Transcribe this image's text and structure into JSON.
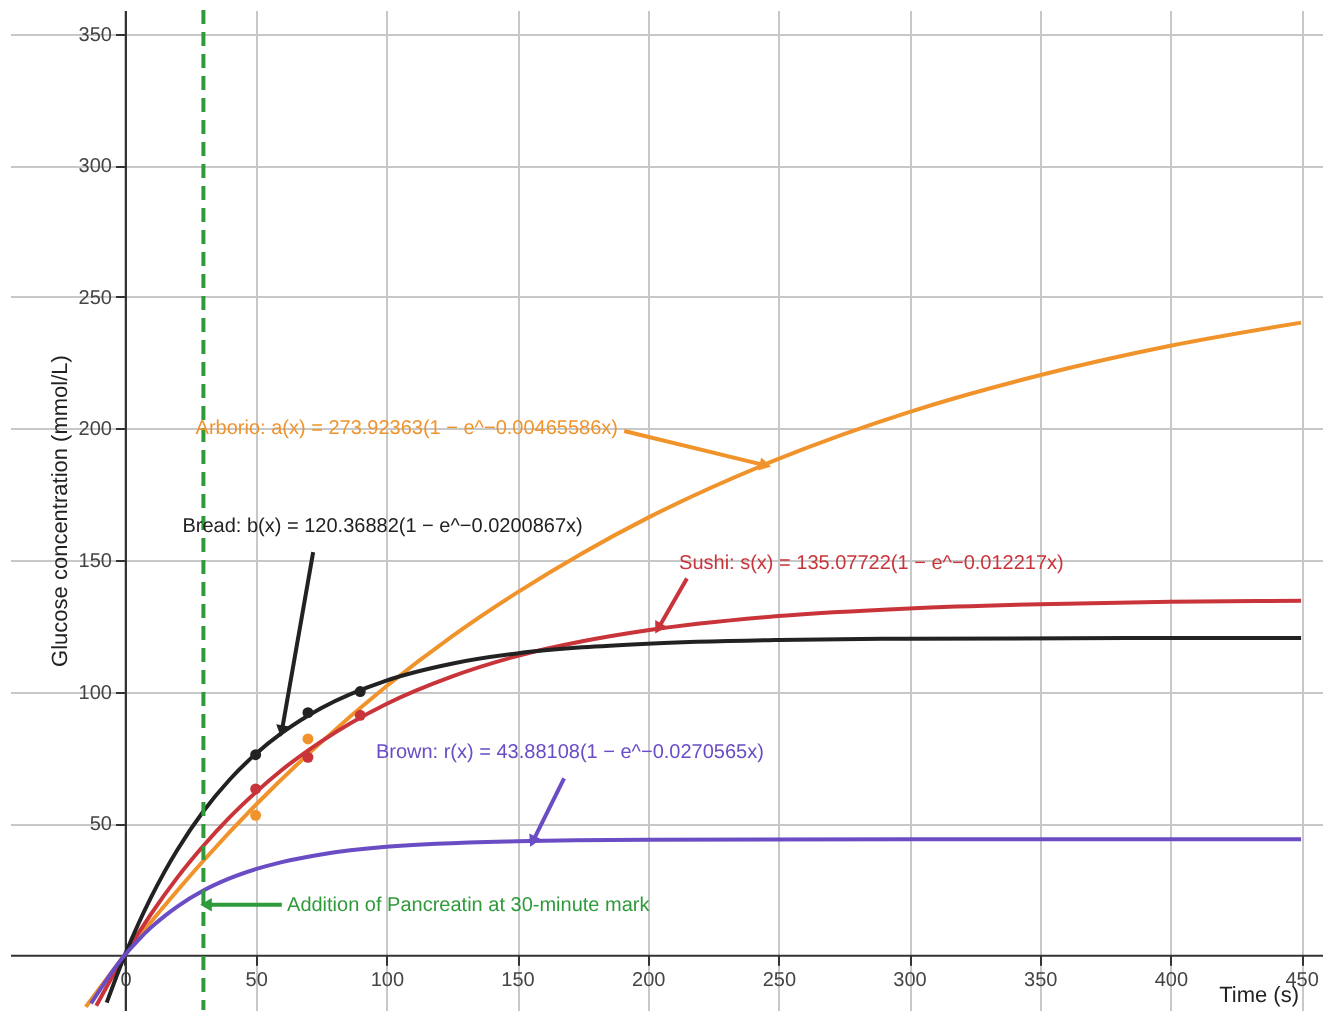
{
  "chart_data": {
    "type": "line",
    "xlabel": "Time (s)",
    "ylabel": "Glucose concentration (mmol/L)",
    "xlim": [
      -44,
      458
    ],
    "ylim": [
      -21,
      359
    ],
    "xticks": [
      0,
      50,
      100,
      150,
      200,
      250,
      300,
      350,
      400,
      450
    ],
    "yticks": [
      50,
      100,
      150,
      200,
      250,
      300,
      350
    ],
    "grid": true,
    "series": [
      {
        "type": "line",
        "color": "#f0932b",
        "x": [
          -15,
          0,
          10,
          20,
          30,
          50,
          75,
          100,
          125,
          150,
          175,
          200,
          250,
          300,
          350,
          400,
          450
        ],
        "values": [
          -19.8,
          0,
          12.5,
          24.3,
          35.7,
          56.9,
          80.7,
          102.0,
          120.9,
          137.6,
          152.6,
          166.0,
          188.4,
          206.2,
          220.2,
          231.4,
          240.2
        ]
      },
      {
        "type": "line",
        "color": "#c9343a",
        "x": [
          -11,
          0,
          10,
          20,
          30,
          40,
          50,
          60,
          75,
          100,
          125,
          150,
          175,
          200,
          250,
          300,
          350,
          400,
          450
        ],
        "values": [
          -19.4,
          0,
          15.5,
          29.3,
          41.4,
          52.2,
          61.7,
          70.2,
          81.0,
          95.3,
          105.7,
          113.5,
          119.1,
          123.3,
          128.7,
          131.6,
          133.2,
          134.1,
          134.5
        ]
      },
      {
        "type": "line",
        "color": "#222222",
        "x": [
          -7,
          0,
          5,
          10,
          15,
          20,
          30,
          40,
          50,
          60,
          75,
          100,
          125,
          150,
          175,
          200,
          250,
          300,
          450
        ],
        "values": [
          -18.2,
          0,
          11.5,
          21.9,
          31.3,
          39.8,
          54.5,
          66.5,
          76.3,
          84.3,
          93.7,
          104.2,
          110.6,
          114.5,
          116.8,
          118.2,
          119.6,
          120.1,
          120.4
        ]
      },
      {
        "type": "line",
        "color": "#6a4cc4",
        "x": [
          -13,
          0,
          5,
          10,
          15,
          20,
          30,
          40,
          50,
          60,
          75,
          100,
          150,
          200,
          300,
          450
        ],
        "values": [
          -18.5,
          0,
          5.5,
          10.4,
          14.6,
          18.3,
          24.4,
          29.0,
          32.5,
          35.2,
          38.1,
          41.0,
          43.1,
          43.7,
          43.9,
          43.9
        ]
      },
      {
        "type": "scatter",
        "marker": "circle",
        "color": "#222222",
        "x": [
          50,
          70,
          90
        ],
        "values": [
          76,
          92,
          100
        ]
      },
      {
        "type": "scatter",
        "marker": "circle",
        "color": "#c9343a",
        "x": [
          50,
          70,
          90
        ],
        "values": [
          63,
          75,
          91
        ]
      },
      {
        "type": "scatter",
        "marker": "circle",
        "color": "#f0932b",
        "x": [
          50,
          70
        ],
        "values": [
          53,
          82
        ]
      }
    ],
    "ref_lines": [
      {
        "axis": "x",
        "value": 30,
        "color": "#2e9a3a",
        "line_style": "dashed"
      }
    ],
    "annotations": [
      {
        "text": "Arborio: a(x) = 273.92363(1 − e^−0.00465586x)",
        "x": 245,
        "y": 186
      },
      {
        "text": "Bread: b(x) = 120.36882(1 − e^−0.0200867x)",
        "x": 60,
        "y": 85
      },
      {
        "text": "Sushi: s(x) = 135.07722(1 − e^−0.012217x)",
        "x": 204,
        "y": 124
      },
      {
        "text": "Brown: r(x) = 43.88108(1 − e^−0.0270565x)",
        "x": 156,
        "y": 43
      },
      {
        "text": "Addition of Pancreatin at 30-minute mark",
        "x": 31,
        "y": 19
      }
    ]
  }
}
